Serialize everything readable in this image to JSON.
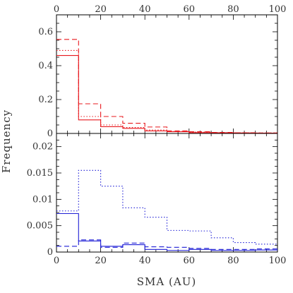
{
  "xlabel": "SMA (AU)",
  "ylabel": "Frequency",
  "chart_data": [
    {
      "type": "histogram",
      "panel": "top",
      "bin_edges": [
        0,
        10,
        20,
        30,
        40,
        50,
        60,
        70,
        80,
        90,
        100
      ],
      "xlim": [
        0,
        100
      ],
      "ylim": [
        0,
        0.7
      ],
      "x_ticks": [
        0,
        20,
        40,
        60,
        80,
        100
      ],
      "y_ticks": [
        0,
        0.2,
        0.4,
        0.6
      ],
      "y_tick_labels": [
        "0",
        "0.2",
        "0.4",
        "0.6"
      ],
      "color": "#e8191e",
      "series": [
        {
          "style": "solid",
          "values": [
            0.46,
            0.08,
            0.04,
            0.03,
            0.015,
            0.01,
            0.005,
            0.004,
            0.003,
            0.002
          ]
        },
        {
          "style": "dashed",
          "values": [
            0.555,
            0.175,
            0.1,
            0.06,
            0.038,
            0.015,
            0.01,
            0.006,
            0.004,
            0.003
          ]
        },
        {
          "style": "dotted",
          "values": [
            0.49,
            0.1,
            0.05,
            0.035,
            0.02,
            0.012,
            0.008,
            0.005,
            0.004,
            0.003
          ]
        }
      ]
    },
    {
      "type": "histogram",
      "panel": "bottom",
      "bin_edges": [
        0,
        10,
        20,
        30,
        40,
        50,
        60,
        70,
        80,
        90,
        100
      ],
      "xlim": [
        0,
        100
      ],
      "ylim": [
        0,
        0.0225
      ],
      "x_ticks": [
        0,
        20,
        40,
        60,
        80,
        100
      ],
      "y_ticks": [
        0,
        0.005,
        0.01,
        0.015,
        0.02
      ],
      "y_tick_labels": [
        "0",
        "0.005",
        "0.01",
        "0.015",
        "0.02"
      ],
      "color": "#1f1fd6",
      "series": [
        {
          "style": "solid",
          "values": [
            0.0073,
            0.0021,
            0.0011,
            0.0014,
            0.0005,
            0.0003,
            0.0005,
            0.0003,
            0.0003,
            0.0004
          ]
        },
        {
          "style": "dashed",
          "values": [
            0.0011,
            0.0023,
            0.0009,
            0.0017,
            0.001,
            0.0009,
            0.0007,
            0.0005,
            0.0005,
            0.0006
          ]
        },
        {
          "style": "dotted",
          "values": [
            0.0078,
            0.0155,
            0.0125,
            0.0084,
            0.0066,
            0.0041,
            0.004,
            0.0027,
            0.0018,
            0.0015
          ]
        }
      ]
    }
  ]
}
